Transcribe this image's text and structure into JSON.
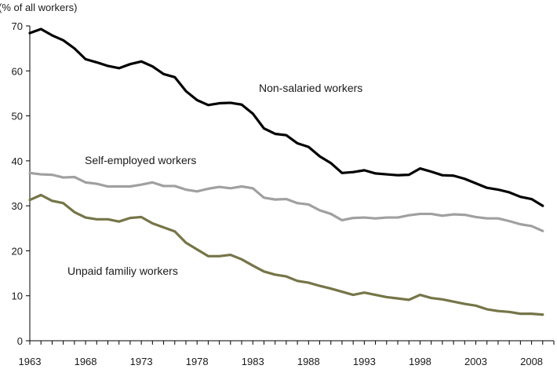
{
  "chart_data": {
    "type": "line",
    "ylabel": "(% of all workers)",
    "xlabel": "",
    "ylim": [
      0,
      70
    ],
    "yticks": [
      0,
      10,
      20,
      30,
      40,
      50,
      60,
      70
    ],
    "xlim": [
      1963,
      2010
    ],
    "xticks": [
      1963,
      1968,
      1973,
      1978,
      1983,
      1988,
      1993,
      1998,
      2003,
      2008
    ],
    "grid": false,
    "legend": "inline labels",
    "x": [
      1963,
      1964,
      1965,
      1966,
      1967,
      1968,
      1969,
      1970,
      1971,
      1972,
      1973,
      1974,
      1975,
      1976,
      1977,
      1978,
      1979,
      1980,
      1981,
      1982,
      1983,
      1984,
      1985,
      1986,
      1987,
      1988,
      1989,
      1990,
      1991,
      1992,
      1993,
      1994,
      1995,
      1996,
      1997,
      1998,
      1999,
      2000,
      2001,
      2002,
      2003,
      2004,
      2005,
      2006,
      2007,
      2008,
      2009
    ],
    "series": [
      {
        "name": "Non-salaried workers",
        "color": "#000000",
        "values": [
          68.4,
          69.3,
          67.9,
          66.8,
          65.0,
          62.6,
          61.9,
          61.1,
          60.6,
          61.5,
          62.1,
          61.0,
          59.3,
          58.6,
          55.5,
          53.5,
          52.4,
          52.8,
          52.9,
          52.5,
          50.5,
          47.2,
          46.0,
          45.7,
          43.9,
          43.1,
          41.0,
          39.5,
          37.3,
          37.5,
          37.9,
          37.2,
          37.0,
          36.8,
          36.9,
          38.3,
          37.6,
          36.8,
          36.7,
          36.0,
          35.0,
          34.0,
          33.6,
          33.0,
          32.0,
          31.5,
          30.0
        ]
      },
      {
        "name": "Self-employed workers",
        "color": "#a0a0a0",
        "values": [
          37.3,
          37.0,
          36.9,
          36.3,
          36.4,
          35.2,
          34.9,
          34.3,
          34.3,
          34.3,
          34.7,
          35.2,
          34.4,
          34.4,
          33.6,
          33.2,
          33.8,
          34.2,
          33.9,
          34.3,
          33.9,
          31.8,
          31.4,
          31.5,
          30.6,
          30.3,
          29.0,
          28.2,
          26.8,
          27.3,
          27.4,
          27.2,
          27.4,
          27.4,
          27.9,
          28.2,
          28.2,
          27.8,
          28.1,
          28.0,
          27.5,
          27.2,
          27.2,
          26.6,
          25.9,
          25.5,
          24.4
        ]
      },
      {
        "name": "Unpaid familiy workers",
        "color": "#757548",
        "values": [
          31.3,
          32.4,
          31.1,
          30.6,
          28.6,
          27.4,
          27.0,
          27.0,
          26.5,
          27.3,
          27.5,
          26.1,
          25.2,
          24.3,
          21.8,
          20.3,
          18.8,
          18.8,
          19.1,
          18.1,
          16.7,
          15.4,
          14.7,
          14.3,
          13.3,
          12.9,
          12.2,
          11.6,
          10.9,
          10.2,
          10.7,
          10.2,
          9.7,
          9.4,
          9.1,
          10.2,
          9.5,
          9.2,
          8.7,
          8.2,
          7.8,
          7.0,
          6.6,
          6.4,
          6.0,
          6.0,
          5.8
        ]
      }
    ]
  }
}
